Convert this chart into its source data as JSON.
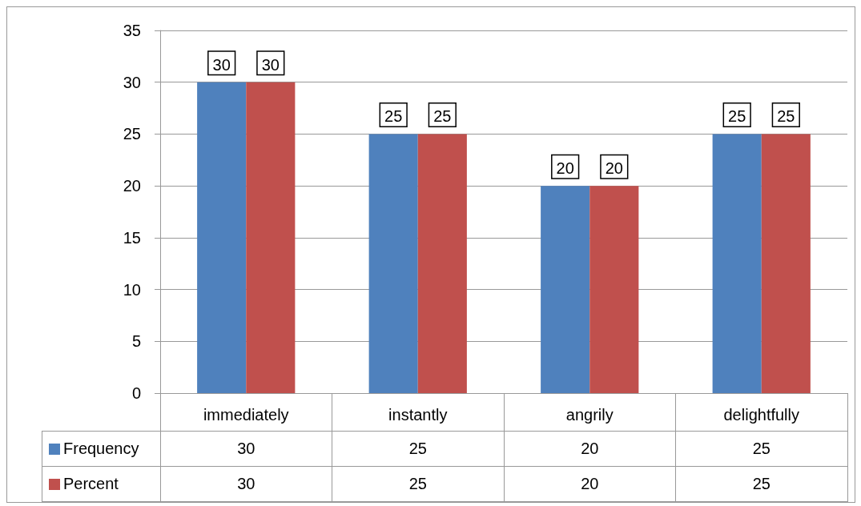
{
  "chart_data": {
    "type": "bar",
    "categories": [
      "immediately",
      "instantly",
      "angrily",
      "delightfully"
    ],
    "series": [
      {
        "name": "Frequency",
        "color": "#4f81bd",
        "values": [
          30,
          25,
          20,
          25
        ]
      },
      {
        "name": "Percent",
        "color": "#c0504d",
        "values": [
          30,
          25,
          20,
          25
        ]
      }
    ],
    "annotations": [
      "30",
      "25",
      "20",
      "25",
      "30",
      "25",
      "20",
      "25"
    ],
    "ylim": [
      0,
      35
    ],
    "yticks": [
      0,
      5,
      10,
      15,
      20,
      25,
      30,
      35
    ],
    "grid": "y",
    "data_labels": true,
    "legend": "bottom left"
  }
}
